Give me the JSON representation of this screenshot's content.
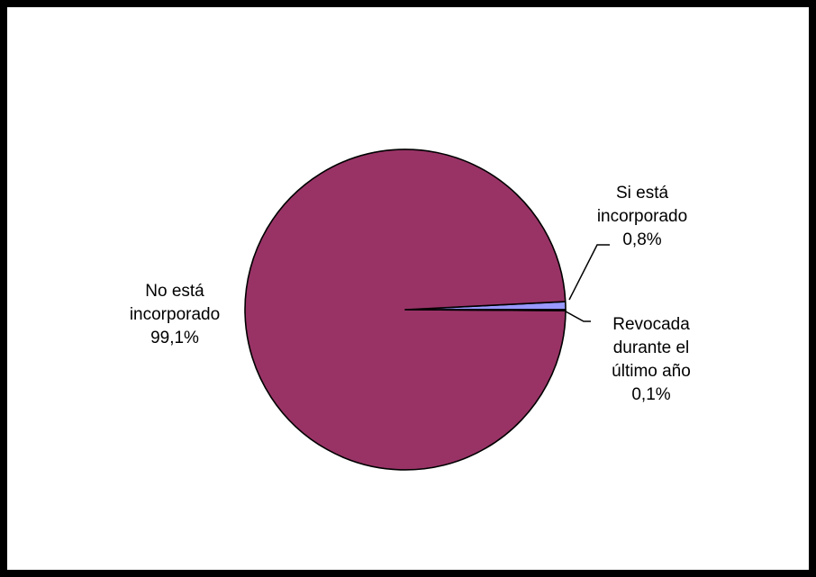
{
  "chart_data": {
    "type": "pie",
    "title": "",
    "start_angle_deg": 0,
    "direction": "counterclockwise",
    "slices": [
      {
        "label_lines": [
          "Si está",
          "incorporado",
          "0,8%"
        ],
        "value": 0.8,
        "color": "#9999FF"
      },
      {
        "label_lines": [
          "No está",
          "incorporado",
          "99,1%"
        ],
        "value": 99.1,
        "color": "#993366"
      },
      {
        "label_lines": [
          "Revocada",
          "durante el",
          "último año",
          "0,1%"
        ],
        "value": 0.1,
        "color": "#FFFFCC"
      }
    ],
    "legend": "none",
    "outline_color": "#000000"
  }
}
